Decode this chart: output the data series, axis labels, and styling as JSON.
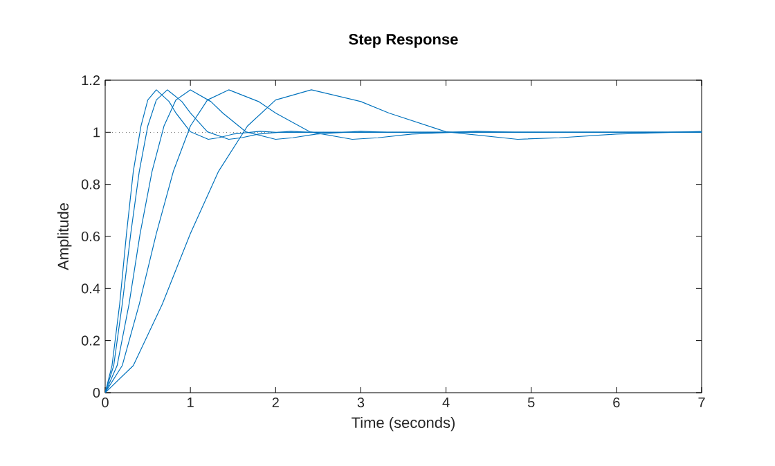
{
  "chart_data": {
    "type": "line",
    "title": "Step Response",
    "xlabel": "Time (seconds)",
    "ylabel": "Amplitude",
    "xlim": [
      0,
      7
    ],
    "ylim": [
      0,
      1.2
    ],
    "xticks": [
      0,
      1,
      2,
      3,
      4,
      5,
      6,
      7
    ],
    "yticks": [
      0,
      0.2,
      0.4,
      0.6,
      0.8,
      1,
      1.2
    ],
    "grid": false,
    "marker": "none",
    "line_style": "solid",
    "ref_lines": [
      {
        "axis": "y",
        "value": 1,
        "color": "#555555",
        "line_style": "dotted"
      }
    ],
    "series": [
      {
        "color": "#0072bd",
        "x": [
          0,
          0.08,
          0.17,
          0.25,
          0.33,
          0.42,
          0.5,
          0.6,
          0.75,
          0.83,
          1.0,
          1.21,
          1.33,
          1.5,
          1.82,
          2,
          7
        ],
        "values": [
          0,
          0.104,
          0.34,
          0.611,
          0.85,
          1.024,
          1.124,
          1.163,
          1.118,
          1.074,
          1.002,
          0.973,
          0.979,
          0.993,
          1.004,
          1.0,
          1.0
        ]
      },
      {
        "color": "#0072bd",
        "x": [
          0,
          0.1,
          0.2,
          0.3,
          0.4,
          0.5,
          0.6,
          0.73,
          0.9,
          1.0,
          1.2,
          1.45,
          1.6,
          1.8,
          2.18,
          2.4,
          7
        ],
        "values": [
          0,
          0.104,
          0.34,
          0.611,
          0.85,
          1.024,
          1.124,
          1.163,
          1.118,
          1.074,
          1.002,
          0.973,
          0.979,
          0.993,
          1.004,
          1.0,
          1.0
        ]
      },
      {
        "color": "#0072bd",
        "x": [
          0,
          0.14,
          0.28,
          0.41,
          0.55,
          0.69,
          0.83,
          1.0,
          1.24,
          1.38,
          1.65,
          2.0,
          2.2,
          2.48,
          3.0,
          3.31,
          7
        ],
        "values": [
          0,
          0.104,
          0.34,
          0.611,
          0.85,
          1.024,
          1.124,
          1.163,
          1.118,
          1.074,
          1.002,
          0.973,
          0.979,
          0.993,
          1.004,
          1.0,
          1.0
        ]
      },
      {
        "color": "#0072bd",
        "x": [
          0,
          0.2,
          0.4,
          0.6,
          0.8,
          1.0,
          1.2,
          1.45,
          1.8,
          2.0,
          2.4,
          2.9,
          3.2,
          3.6,
          4.36,
          4.8,
          7
        ],
        "values": [
          0,
          0.104,
          0.34,
          0.611,
          0.85,
          1.024,
          1.124,
          1.163,
          1.118,
          1.074,
          1.002,
          0.973,
          0.979,
          0.993,
          1.004,
          1.0,
          1.0
        ]
      },
      {
        "color": "#0072bd",
        "x": [
          0,
          0.33,
          0.67,
          1.0,
          1.33,
          1.67,
          2.0,
          2.42,
          3.0,
          3.33,
          4.0,
          4.84,
          5.33,
          6.0,
          7
        ],
        "values": [
          0,
          0.104,
          0.34,
          0.611,
          0.85,
          1.024,
          1.124,
          1.163,
          1.118,
          1.074,
          1.002,
          0.973,
          0.979,
          0.993,
          1.003
        ]
      }
    ]
  }
}
